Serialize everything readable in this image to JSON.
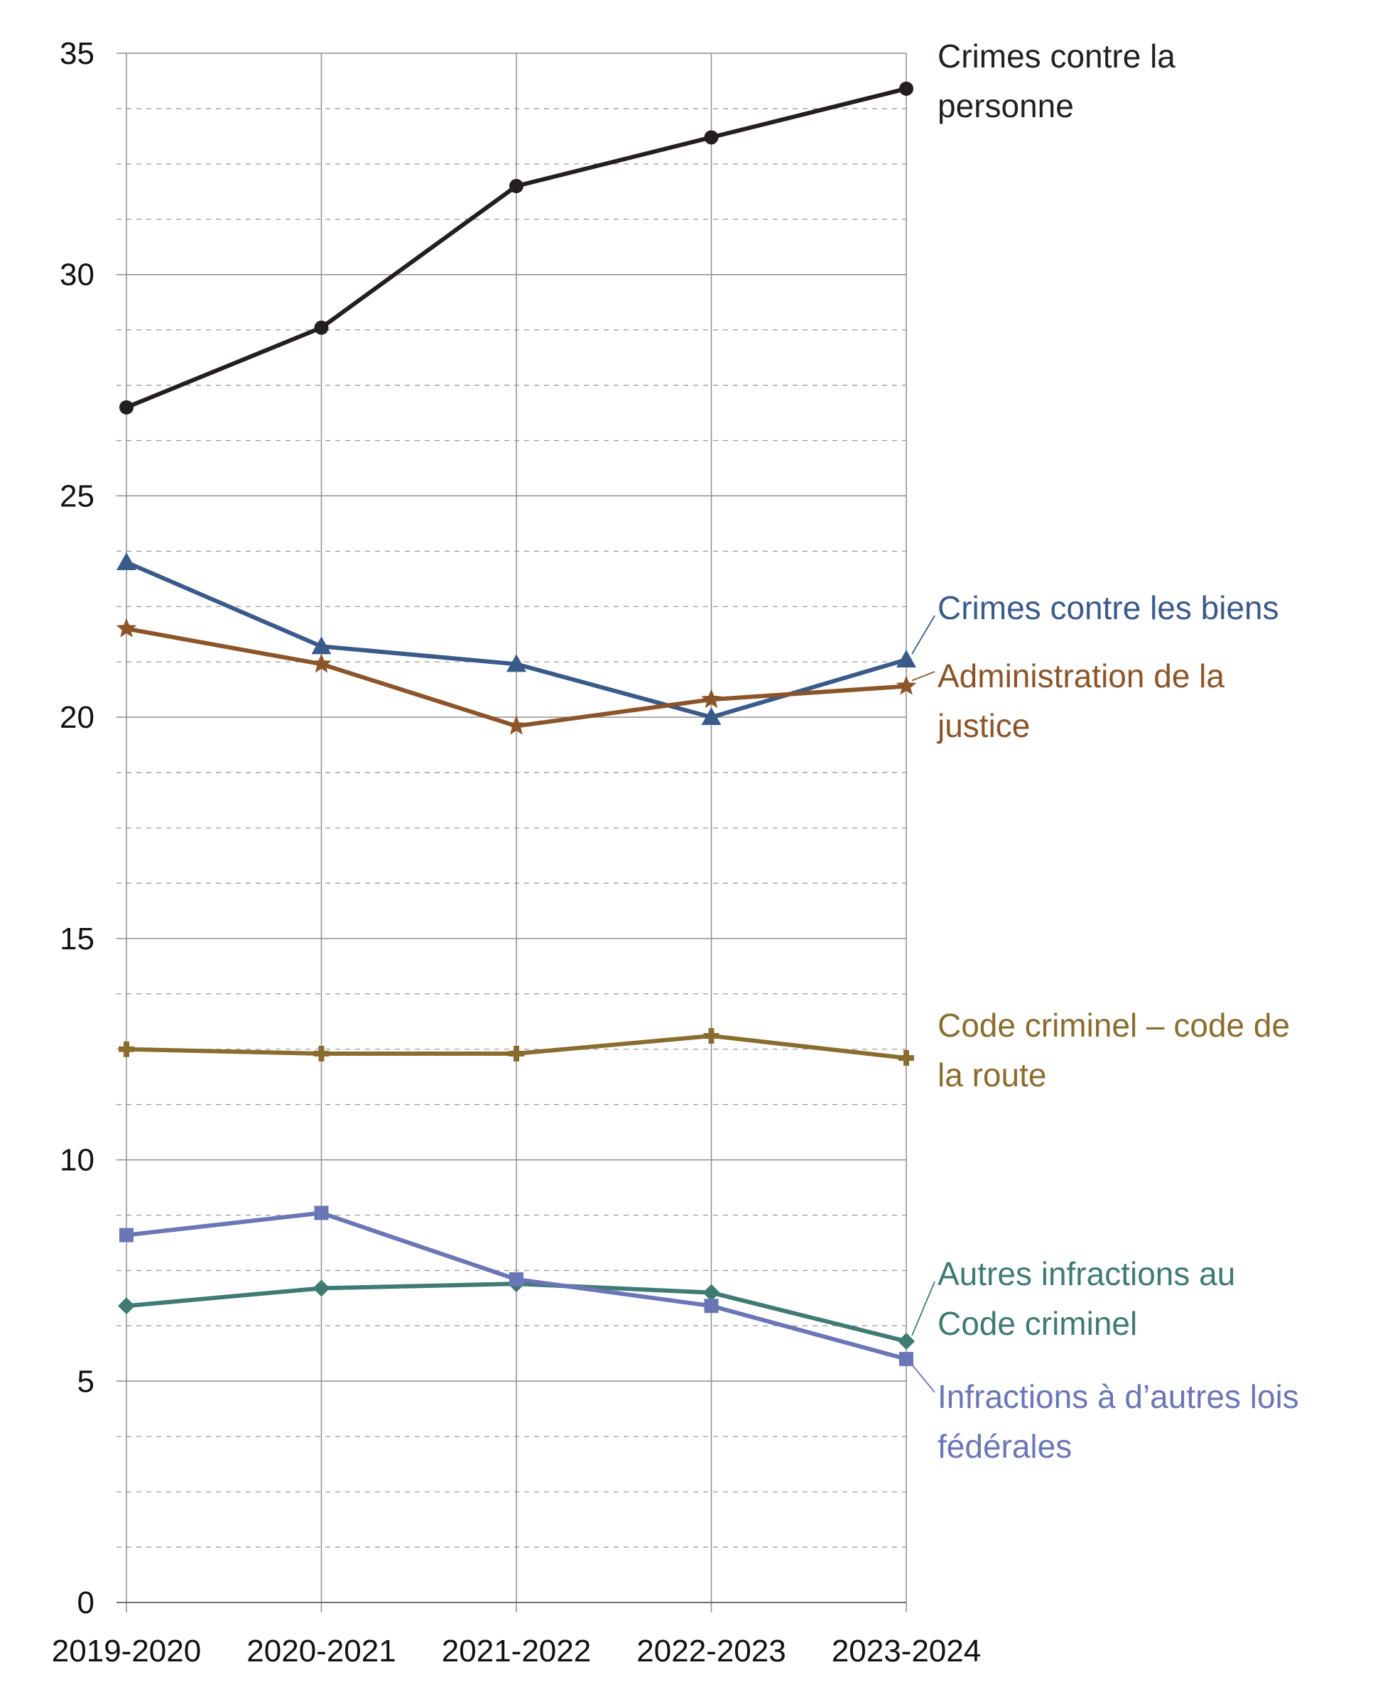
{
  "chart_data": {
    "type": "line",
    "title": "",
    "xlabel": "",
    "ylabel": "",
    "categories": [
      "2019-2020",
      "2020-2021",
      "2021-2022",
      "2022-2023",
      "2023-2024"
    ],
    "ylim": [
      0,
      35
    ],
    "y_ticks": [
      0,
      5,
      10,
      15,
      20,
      25,
      30,
      35
    ],
    "grid": {
      "major_y": true,
      "minor_y_dashed": true,
      "vertical": true
    },
    "legend": "direct labels at right end of each line",
    "series": [
      {
        "name": "Crimes contre la personne",
        "label_lines": [
          "Crimes contre la",
          "personne"
        ],
        "color": "#231f20",
        "marker": "circle",
        "values": [
          27.0,
          28.8,
          32.0,
          33.1,
          34.2
        ]
      },
      {
        "name": "Crimes contre les biens",
        "label_lines": [
          "Crimes contre les biens"
        ],
        "color": "#3a5a8a",
        "marker": "triangle",
        "values": [
          23.5,
          21.6,
          21.2,
          20.0,
          21.3
        ]
      },
      {
        "name": "Administration de la justice",
        "label_lines": [
          "Administration de la",
          "justice"
        ],
        "color": "#8b5529",
        "marker": "star",
        "values": [
          22.0,
          21.2,
          19.8,
          20.4,
          20.7
        ]
      },
      {
        "name": "Code criminel – code de la route",
        "label_lines": [
          "Code criminel – code de",
          "la route"
        ],
        "color": "#8a6d2e",
        "marker": "cross",
        "values": [
          12.5,
          12.4,
          12.4,
          12.8,
          12.3
        ]
      },
      {
        "name": "Autres infractions au Code criminel",
        "label_lines": [
          "Autres infractions au",
          "Code criminel"
        ],
        "color": "#3f7b73",
        "marker": "diamond",
        "values": [
          6.7,
          7.1,
          7.2,
          7.0,
          5.9
        ]
      },
      {
        "name": "Infractions à d’autres lois fédérales",
        "label_lines": [
          "Infractions à d’autres lois",
          "fédérales"
        ],
        "color": "#6b76b6",
        "marker": "square",
        "values": [
          8.3,
          8.8,
          7.3,
          6.7,
          5.5
        ]
      }
    ]
  }
}
